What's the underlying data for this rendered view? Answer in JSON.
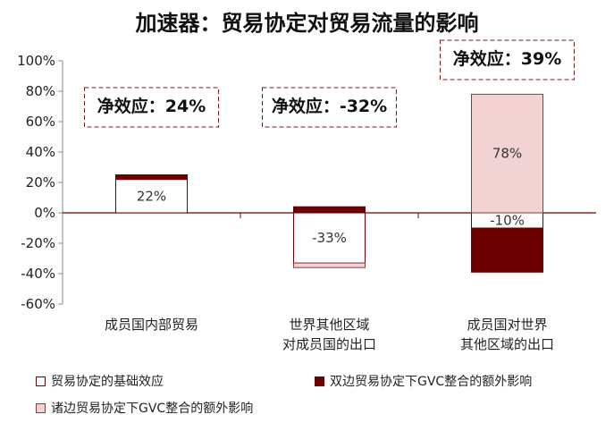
{
  "chart_data": {
    "type": "bar",
    "title": "加速器：贸易协定对贸易流量的影响",
    "categories": [
      [
        "成员国内部贸易"
      ],
      [
        "世界其他区域",
        "对成员国的出口"
      ],
      [
        "成员国对世界",
        "其他区域的出口"
      ]
    ],
    "ylim": [
      -60,
      100
    ],
    "yticks": [
      "100%",
      "80%",
      "60%",
      "40%",
      "20%",
      "0%",
      "-20%",
      "-40%",
      "-60%"
    ],
    "series": [
      {
        "name": "贸易协定的基础效应",
        "color": "#ffffff",
        "values": [
          22,
          -33,
          -10
        ],
        "labels": [
          "22%",
          "-33%",
          "-10%"
        ]
      },
      {
        "name": "双边贸易协定下GVC整合的额外影响",
        "color": "#6b0000",
        "values": [
          3,
          4,
          -29
        ],
        "labels": [
          "",
          "",
          ""
        ]
      },
      {
        "name": "诸边贸易协定下GVC整合的额外影响",
        "color": "#f2d3d3",
        "values": [
          0,
          -3,
          78
        ],
        "labels": [
          "",
          "",
          "78%"
        ]
      }
    ],
    "annotations": [
      "净效应：24%",
      "净效应：-32%",
      "净效应：39%"
    ]
  }
}
